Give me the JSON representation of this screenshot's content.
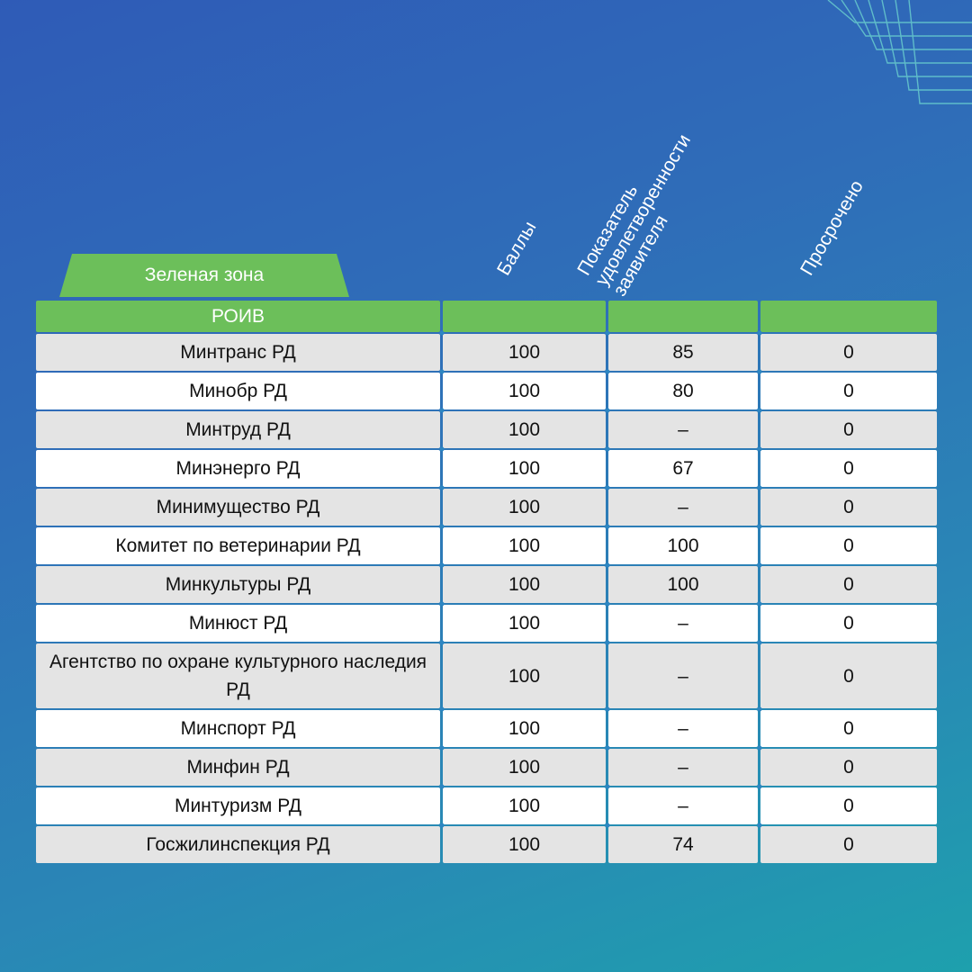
{
  "zone_tab": "Зеленая зона",
  "columns": {
    "org": "РОИВ",
    "score": "Баллы",
    "satisfaction": [
      "Показатель",
      "удовлетворенности",
      "заявителя"
    ],
    "overdue": "Просрочено"
  },
  "rows": [
    {
      "name": "Минтранс РД",
      "score": "100",
      "satisfaction": "85",
      "overdue": "0"
    },
    {
      "name": "Минобр РД",
      "score": "100",
      "satisfaction": "80",
      "overdue": "0"
    },
    {
      "name": "Минтруд РД",
      "score": "100",
      "satisfaction": "–",
      "overdue": "0"
    },
    {
      "name": "Минэнерго РД",
      "score": "100",
      "satisfaction": "67",
      "overdue": "0"
    },
    {
      "name": "Минимущество РД",
      "score": "100",
      "satisfaction": "–",
      "overdue": "0"
    },
    {
      "name": "Комитет по ветеринарии РД",
      "score": "100",
      "satisfaction": "100",
      "overdue": "0"
    },
    {
      "name": "Минкультуры РД",
      "score": "100",
      "satisfaction": "100",
      "overdue": "0"
    },
    {
      "name": "Минюст РД",
      "score": "100",
      "satisfaction": "–",
      "overdue": "0"
    },
    {
      "name": "Агентство по охране культурного наследия РД",
      "score": "100",
      "satisfaction": "–",
      "overdue": "0"
    },
    {
      "name": "Минспорт РД",
      "score": "100",
      "satisfaction": "–",
      "overdue": "0"
    },
    {
      "name": "Минфин РД",
      "score": "100",
      "satisfaction": "–",
      "overdue": "0"
    },
    {
      "name": "Минтуризм РД",
      "score": "100",
      "satisfaction": "–",
      "overdue": "0"
    },
    {
      "name": "Госжилинспекция РД",
      "score": "100",
      "satisfaction": "74",
      "overdue": "0"
    }
  ],
  "colors": {
    "green": "#6cbf5a",
    "row_odd": "#e4e4e4",
    "row_even": "#ffffff"
  }
}
